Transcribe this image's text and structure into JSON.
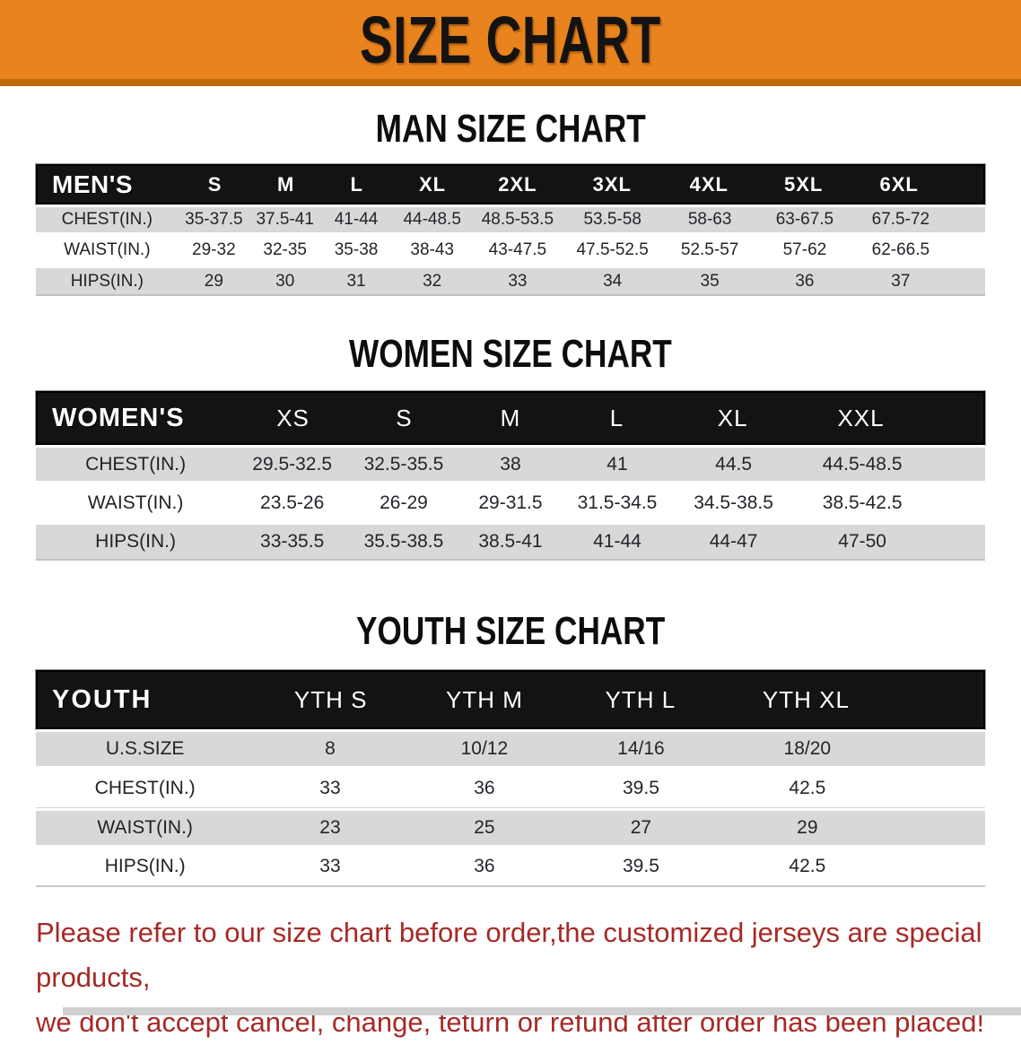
{
  "banner": {
    "title": "SIZE CHART",
    "bg_color": "#e8831d",
    "edge_color": "#bf6a0c"
  },
  "sections": [
    {
      "heading": "MAN SIZE CHART",
      "table": {
        "header_label": "MEN'S",
        "columns": [
          "S",
          "M",
          "L",
          "XL",
          "2XL",
          "3XL",
          "4XL",
          "5XL",
          "6XL"
        ],
        "rows": [
          {
            "label": "CHEST(IN.)",
            "values": [
              "35-37.5",
              "37.5-41",
              "41-44",
              "44-48.5",
              "48.5-53.5",
              "53.5-58",
              "58-63",
              "63-67.5",
              "67.5-72"
            ]
          },
          {
            "label": "WAIST(IN.)",
            "values": [
              "29-32",
              "32-35",
              "35-38",
              "38-43",
              "43-47.5",
              "47.5-52.5",
              "52.5-57",
              "57-62",
              "62-66.5"
            ]
          },
          {
            "label": "HIPS(IN.)",
            "values": [
              "29",
              "30",
              "31",
              "32",
              "33",
              "34",
              "35",
              "36",
              "37"
            ]
          }
        ]
      }
    },
    {
      "heading": "WOMEN SIZE CHART",
      "table": {
        "header_label": "WOMEN'S",
        "columns": [
          "XS",
          "S",
          "M",
          "L",
          "XL",
          "XXL"
        ],
        "rows": [
          {
            "label": "CHEST(IN.)",
            "values": [
              "29.5-32.5",
              "32.5-35.5",
              "38",
              "41",
              "44.5",
              "44.5-48.5"
            ]
          },
          {
            "label": "WAIST(IN.)",
            "values": [
              "23.5-26",
              "26-29",
              "29-31.5",
              "31.5-34.5",
              "34.5-38.5",
              "38.5-42.5"
            ]
          },
          {
            "label": "HIPS(IN.)",
            "values": [
              "33-35.5",
              "35.5-38.5",
              "38.5-41",
              "41-44",
              "44-47",
              "47-50"
            ]
          }
        ]
      }
    },
    {
      "heading": "YOUTH SIZE CHART",
      "table": {
        "header_label": "YOUTH",
        "columns": [
          "YTH S",
          "YTH M",
          "YTH L",
          "YTH XL"
        ],
        "rows": [
          {
            "label": "U.S.SIZE",
            "values": [
              "8",
              "10/12",
              "14/16",
              "18/20"
            ]
          },
          {
            "label": "CHEST(IN.)",
            "values": [
              "33",
              "36",
              "39.5",
              "42.5"
            ]
          },
          {
            "label": "WAIST(IN.)",
            "values": [
              "23",
              "25",
              "27",
              "29"
            ]
          },
          {
            "label": "HIPS(IN.)",
            "values": [
              "33",
              "36",
              "39.5",
              "42.5"
            ]
          }
        ]
      }
    }
  ],
  "disclaimer": {
    "line1": "Please refer to our size chart before order,the customized jerseys are special products,",
    "line2": "we don't accept cancel, change, teturn or refund after order has been placed!",
    "color": "#a62a26"
  }
}
